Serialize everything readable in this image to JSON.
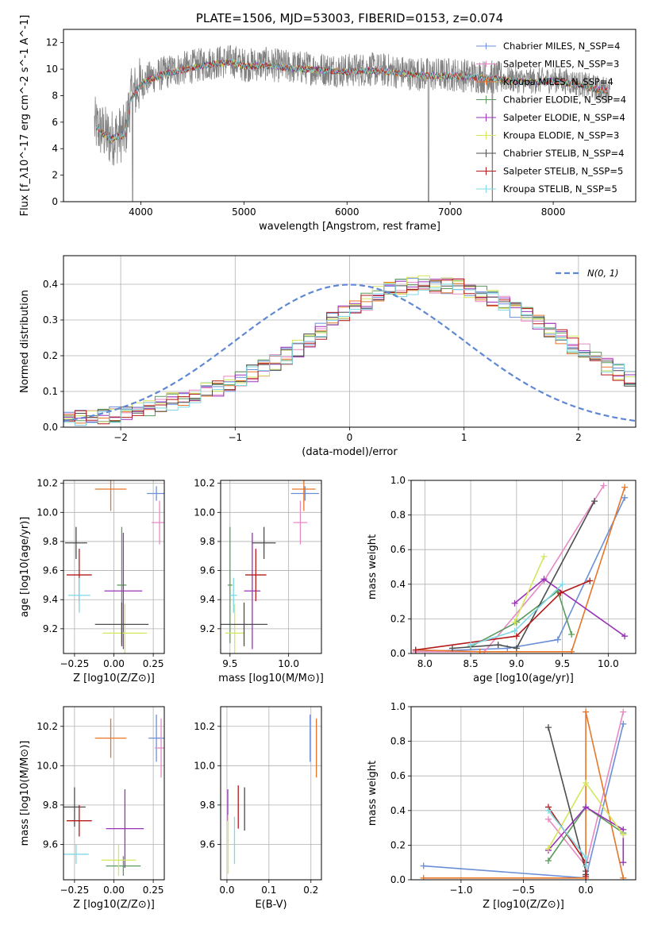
{
  "chart_data": [
    {
      "type": "line",
      "id": "spectrum",
      "title": "PLATE=1506, MJD=53003, FIBERID=0153, z=0.074",
      "xlabel": "wavelength [Angstrom, rest frame]",
      "ylabel": "Flux [f_λ10^-17 erg cm^-2 s^-1 A^-1]",
      "xlim": [
        3250,
        8800
      ],
      "ylim": [
        0,
        13
      ],
      "xticks": [
        4000,
        5000,
        6000,
        7000,
        8000
      ],
      "yticks": [
        0,
        2,
        4,
        6,
        8,
        10,
        12
      ],
      "grid": false,
      "legend_position": "right",
      "series": [
        {
          "name": "Chabrier MILES, N_SSP=4",
          "color": "#6b8fd6",
          "marker": "+"
        },
        {
          "name": "Salpeter MILES, N_SSP=3",
          "color": "#e78ac3",
          "marker": "+"
        },
        {
          "name": "Kroupa MILES, N_SSP=4",
          "color": "#e7762a",
          "marker": "+"
        },
        {
          "name": "Chabrier ELODIE, N_SSP=4",
          "color": "#5a9a5a",
          "marker": "|"
        },
        {
          "name": "Salpeter ELODIE, N_SSP=4",
          "color": "#9a32b8",
          "marker": "|"
        },
        {
          "name": "Kroupa ELODIE, N_SSP=3",
          "color": "#d5e65a",
          "marker": "|"
        },
        {
          "name": "Chabrier STELIB, N_SSP=4",
          "color": "#4d4d4d",
          "marker": "|"
        },
        {
          "name": "Salpeter STELIB, N_SSP=5",
          "color": "#b31b1b",
          "marker": "|"
        },
        {
          "name": "Kroupa STELIB, N_SSP=5",
          "color": "#7fd8e4",
          "marker": "|"
        }
      ],
      "data_envelope": {
        "x": [
          3550,
          3700,
          3850,
          3900,
          4000,
          4100,
          4300,
          4500,
          4700,
          4900,
          5000,
          5200,
          5400,
          5600,
          5800,
          6000,
          6200,
          6400,
          6600,
          6800,
          7000,
          7200,
          7400,
          7600,
          7800,
          8000,
          8200,
          8400,
          8550
        ],
        "y": [
          5.8,
          4.8,
          5.2,
          7.8,
          8.9,
          9.4,
          9.9,
          10.2,
          10.5,
          10.6,
          10.3,
          10.4,
          10.2,
          10.1,
          10.0,
          9.9,
          10.0,
          9.9,
          9.7,
          9.6,
          9.6,
          9.5,
          9.4,
          9.2,
          9.1,
          9.2,
          9.0,
          8.6,
          8.4
        ]
      }
    },
    {
      "type": "bar",
      "id": "residuals",
      "title": "",
      "xlabel": "(data-model)/error",
      "ylabel": "Normed distribution",
      "xlim": [
        -2.5,
        2.5
      ],
      "ylim": [
        0,
        0.48
      ],
      "xticks": [
        -2,
        -1,
        0,
        1,
        2
      ],
      "yticks": [
        0.0,
        0.1,
        0.2,
        0.3,
        0.4
      ],
      "grid": true,
      "legend_position": "top-right",
      "legend": [
        "N(0, 1)"
      ],
      "bin_width": 0.1,
      "bin_start": -2.5,
      "hist_values": [
        0.02,
        0.025,
        0.03,
        0.033,
        0.037,
        0.045,
        0.05,
        0.055,
        0.063,
        0.072,
        0.08,
        0.09,
        0.1,
        0.11,
        0.125,
        0.138,
        0.15,
        0.165,
        0.18,
        0.2,
        0.22,
        0.245,
        0.27,
        0.3,
        0.32,
        0.335,
        0.35,
        0.37,
        0.385,
        0.39,
        0.395,
        0.4,
        0.398,
        0.395,
        0.39,
        0.385,
        0.375,
        0.36,
        0.345,
        0.33,
        0.31,
        0.29,
        0.27,
        0.25,
        0.23,
        0.21,
        0.19,
        0.17,
        0.155,
        0.14
      ],
      "gaussian": {
        "mean": 0,
        "sigma": 1
      }
    },
    {
      "type": "scatter",
      "id": "age-vs-Z",
      "xlabel": "Z [log10(Z/Z⊙)]",
      "ylabel": "age  [log10(age/yr)]",
      "xlim": [
        -0.32,
        0.32
      ],
      "ylim": [
        9.03,
        10.22
      ],
      "xticks": [
        -0.25,
        0.0,
        0.25
      ],
      "yticks": [
        9.2,
        9.4,
        9.6,
        9.8,
        10.0,
        10.2
      ],
      "grid": true,
      "points": [
        {
          "series": 0,
          "x": 0.27,
          "y": 10.13,
          "xerr": 0.06,
          "yerr": 0.05
        },
        {
          "series": 1,
          "x": 0.29,
          "y": 9.93,
          "xerr": 0.05,
          "yerr": 0.15
        },
        {
          "series": 2,
          "x": -0.02,
          "y": 10.16,
          "xerr": 0.1,
          "yerr": 0.15
        },
        {
          "series": 3,
          "x": 0.05,
          "y": 9.5,
          "xerr": 0.03,
          "yerr": 0.4
        },
        {
          "series": 4,
          "x": 0.06,
          "y": 9.46,
          "xerr": 0.12,
          "yerr": 0.4
        },
        {
          "series": 5,
          "x": 0.07,
          "y": 9.17,
          "xerr": 0.14,
          "yerr": 0.2
        },
        {
          "series": 6,
          "x": 0.05,
          "y": 9.23,
          "xerr": 0.17,
          "yerr": 0.15
        },
        {
          "series": 7,
          "x": -0.22,
          "y": 9.57,
          "xerr": 0.08,
          "yerr": 0.18
        },
        {
          "series": 8,
          "x": -0.22,
          "y": 9.43,
          "xerr": 0.07,
          "yerr": 0.12
        },
        {
          "series": 6,
          "x": -0.24,
          "y": 9.79,
          "xerr": 0.07,
          "yerr": 0.11
        }
      ]
    },
    {
      "type": "scatter",
      "id": "age-vs-mass",
      "xlabel": "mass [log10(M/M⊙)]",
      "ylabel": "",
      "xlim": [
        9.42,
        10.28
      ],
      "ylim": [
        9.03,
        10.22
      ],
      "xticks": [
        9.5,
        10.0
      ],
      "yticks": [
        9.2,
        9.4,
        9.6,
        9.8,
        10.0,
        10.2
      ],
      "grid": true,
      "points": [
        {
          "series": 0,
          "x": 10.14,
          "y": 10.13,
          "xerr": 0.12,
          "yerr": 0.05
        },
        {
          "series": 1,
          "x": 10.1,
          "y": 9.93,
          "xerr": 0.06,
          "yerr": 0.15
        },
        {
          "series": 2,
          "x": 10.13,
          "y": 10.16,
          "xerr": 0.1,
          "yerr": 0.15
        },
        {
          "series": 3,
          "x": 9.5,
          "y": 9.5,
          "xerr": 0.02,
          "yerr": 0.4
        },
        {
          "series": 4,
          "x": 9.69,
          "y": 9.46,
          "xerr": 0.07,
          "yerr": 0.4
        },
        {
          "series": 5,
          "x": 9.54,
          "y": 9.17,
          "xerr": 0.08,
          "yerr": 0.2
        },
        {
          "series": 6,
          "x": 9.62,
          "y": 9.23,
          "xerr": 0.2,
          "yerr": 0.15
        },
        {
          "series": 7,
          "x": 9.72,
          "y": 9.57,
          "xerr": 0.09,
          "yerr": 0.18
        },
        {
          "series": 8,
          "x": 9.53,
          "y": 9.43,
          "xerr": 0.03,
          "yerr": 0.12
        },
        {
          "series": 6,
          "x": 9.79,
          "y": 9.79,
          "xerr": 0.1,
          "yerr": 0.11
        }
      ]
    },
    {
      "type": "line",
      "id": "massweight-vs-age",
      "xlabel": "age  [log10(age/yr)]",
      "ylabel": "mass weight",
      "xlim": [
        7.85,
        10.3
      ],
      "ylim": [
        0,
        1
      ],
      "xticks": [
        8.0,
        8.5,
        9.0,
        9.5,
        10.0
      ],
      "yticks": [
        0.0,
        0.2,
        0.4,
        0.6,
        0.8,
        1.0
      ],
      "grid": true,
      "series": [
        {
          "series": 0,
          "x": [
            7.9,
            8.9,
            9.45,
            10.18
          ],
          "y": [
            0.01,
            0.03,
            0.08,
            0.9
          ]
        },
        {
          "series": 1,
          "x": [
            7.9,
            8.65,
            9.3,
            9.95
          ],
          "y": [
            0.01,
            0.01,
            0.42,
            0.97
          ]
        },
        {
          "series": 2,
          "x": [
            7.9,
            8.6,
            9.6,
            10.18
          ],
          "y": [
            0.02,
            0.01,
            0.01,
            0.96
          ]
        },
        {
          "series": 3,
          "x": [
            8.5,
            9.0,
            9.45,
            9.6
          ],
          "y": [
            0.04,
            0.18,
            0.36,
            0.11
          ]
        },
        {
          "series": 4,
          "x": [
            8.98,
            9.3,
            10.18
          ],
          "y": [
            0.29,
            0.43,
            0.1
          ]
        },
        {
          "series": 5,
          "x": [
            8.98,
            9.3
          ],
          "y": [
            0.18,
            0.56
          ]
        },
        {
          "series": 6,
          "x": [
            8.3,
            8.8,
            9.0,
            9.85
          ],
          "y": [
            0.03,
            0.05,
            0.03,
            0.88
          ]
        },
        {
          "series": 7,
          "x": [
            7.9,
            9.0,
            9.48,
            9.8
          ],
          "y": [
            0.02,
            0.1,
            0.35,
            0.42
          ]
        },
        {
          "series": 8,
          "x": [
            8.5,
            8.98,
            9.5
          ],
          "y": [
            0.05,
            0.13,
            0.4
          ]
        }
      ]
    },
    {
      "type": "scatter",
      "id": "mass-vs-Z",
      "xlabel": "Z [log10(Z/Z⊙)]",
      "ylabel": "mass [log10(M/M⊙)]",
      "xlim": [
        -0.32,
        0.32
      ],
      "ylim": [
        9.42,
        10.3
      ],
      "xticks": [
        -0.25,
        0.0,
        0.25
      ],
      "yticks": [
        9.6,
        9.8,
        10.0,
        10.2
      ],
      "grid": true,
      "points": [
        {
          "series": 0,
          "x": 0.27,
          "y": 10.14,
          "xerr": 0.05,
          "yerr": 0.12
        },
        {
          "series": 1,
          "x": 0.3,
          "y": 10.09,
          "xerr": 0.04,
          "yerr": 0.15
        },
        {
          "series": 2,
          "x": -0.02,
          "y": 10.14,
          "xerr": 0.1,
          "yerr": 0.1
        },
        {
          "series": 3,
          "x": 0.06,
          "y": 9.49,
          "xerr": 0.11,
          "yerr": 0.05
        },
        {
          "series": 4,
          "x": 0.07,
          "y": 9.68,
          "xerr": 0.12,
          "yerr": 0.2
        },
        {
          "series": 5,
          "x": 0.03,
          "y": 9.52,
          "xerr": 0.11,
          "yerr": 0.08
        },
        {
          "series": 6,
          "x": -0.25,
          "y": 9.79,
          "xerr": 0.07,
          "yerr": 0.1
        },
        {
          "series": 7,
          "x": -0.22,
          "y": 9.72,
          "xerr": 0.08,
          "yerr": 0.08
        },
        {
          "series": 8,
          "x": -0.24,
          "y": 9.55,
          "xerr": 0.08,
          "yerr": 0.05
        }
      ]
    },
    {
      "type": "scatter",
      "id": "ebv",
      "xlabel": "E(B-V)",
      "ylabel": "",
      "xlim": [
        -0.015,
        0.225
      ],
      "ylim": [
        9.42,
        10.3
      ],
      "xticks": [
        0.0,
        0.1,
        0.2
      ],
      "yticks": [
        9.6,
        9.8,
        10.0,
        10.2
      ],
      "grid": true,
      "points": [
        {
          "series": 0,
          "x": 0.198,
          "y": 10.14,
          "xerr": 0,
          "yerr": 0.12
        },
        {
          "series": 2,
          "x": 0.213,
          "y": 10.09,
          "xerr": 0,
          "yerr": 0.15
        },
        {
          "series": 4,
          "x": 0.002,
          "y": 9.8,
          "xerr": 0,
          "yerr": 0.08
        },
        {
          "series": 5,
          "x": 0.003,
          "y": 9.6,
          "xerr": 0,
          "yerr": 0.15
        },
        {
          "series": 7,
          "x": 0.027,
          "y": 9.79,
          "xerr": 0,
          "yerr": 0.11
        },
        {
          "series": 8,
          "x": 0.018,
          "y": 9.62,
          "xerr": 0,
          "yerr": 0.12
        },
        {
          "series": 6,
          "x": 0.042,
          "y": 9.78,
          "xerr": 0,
          "yerr": 0.11
        }
      ]
    },
    {
      "type": "line",
      "id": "massweight-vs-Z",
      "xlabel": "Z [log10(Z/Z⊙)]",
      "ylabel": "mass weight",
      "xlim": [
        -1.4,
        0.4
      ],
      "ylim": [
        0,
        1
      ],
      "xticks": [
        -1.0,
        -0.5,
        0.0
      ],
      "yticks": [
        0.0,
        0.2,
        0.4,
        0.6,
        0.8,
        1.0
      ],
      "grid": true,
      "series": [
        {
          "series": 0,
          "x": [
            -1.3,
            0.0,
            0.3
          ],
          "y": [
            0.08,
            0.01,
            0.9
          ]
        },
        {
          "series": 1,
          "x": [
            -0.3,
            0.0,
            0.3
          ],
          "y": [
            0.35,
            0.08,
            0.97
          ]
        },
        {
          "series": 2,
          "x": [
            -1.3,
            0.0,
            0.0,
            0.3
          ],
          "y": [
            0.01,
            0.01,
            0.97,
            0.01
          ]
        },
        {
          "series": 3,
          "x": [
            -0.3,
            0.0,
            0.3
          ],
          "y": [
            0.11,
            0.42,
            0.27
          ]
        },
        {
          "series": 4,
          "x": [
            -0.3,
            0.0,
            0.3,
            0.3
          ],
          "y": [
            0.17,
            0.42,
            0.29,
            0.1
          ]
        },
        {
          "series": 5,
          "x": [
            -0.3,
            0.0,
            0.3
          ],
          "y": [
            0.18,
            0.56,
            0.26
          ]
        },
        {
          "series": 6,
          "x": [
            -0.3,
            0.0,
            0.0
          ],
          "y": [
            0.88,
            0.05,
            0.03
          ]
        },
        {
          "series": 7,
          "x": [
            -0.3,
            0.0,
            0.0
          ],
          "y": [
            0.42,
            0.1,
            0.02
          ]
        },
        {
          "series": 8,
          "x": [
            -0.3,
            0.0,
            0.0
          ],
          "y": [
            0.4,
            0.13,
            0.08
          ]
        }
      ]
    }
  ]
}
